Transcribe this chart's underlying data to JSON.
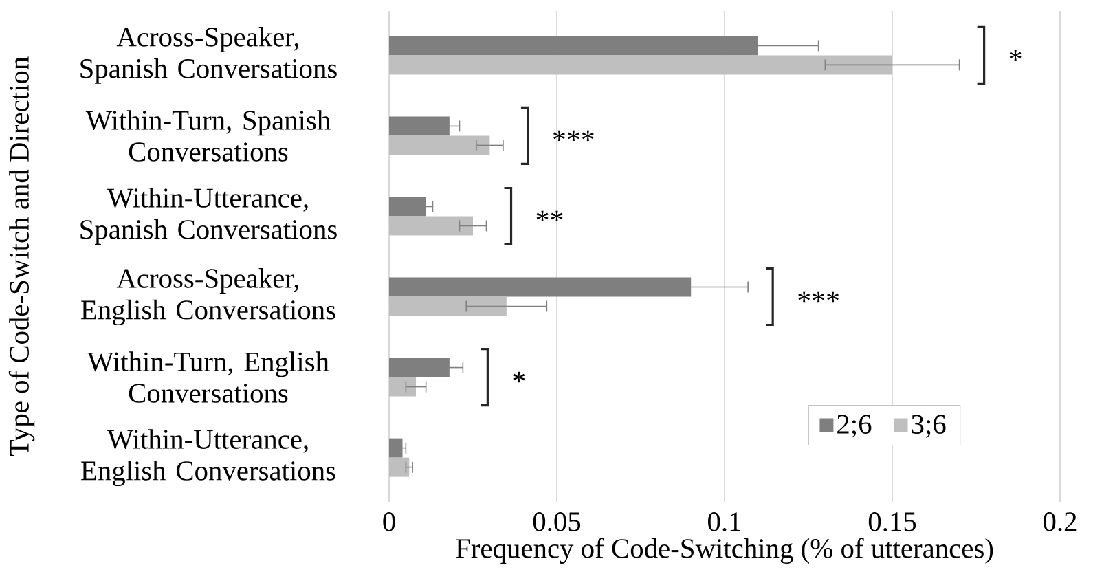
{
  "chart_data": {
    "type": "bar",
    "orientation": "horizontal",
    "xlabel": "Frequency of Code-Switching (% of utterances)",
    "ylabel": "Type of Code-Switch and Direction",
    "categories": [
      "Across-Speaker, Spanish Conversations",
      "Within-Turn, Spanish Conversations",
      "Within-Utterance, Spanish Conversations",
      "Across-Speaker, English Conversations",
      "Within-Turn, English Conversations",
      "Within-Utterance, English Conversations"
    ],
    "series": [
      {
        "name": "2;6",
        "color": "#7f7f7f",
        "values": [
          0.11,
          0.018,
          0.011,
          0.09,
          0.018,
          0.004
        ],
        "errors": [
          0.018,
          0.003,
          0.002,
          0.017,
          0.004,
          0.001
        ]
      },
      {
        "name": "3;6",
        "color": "#bfbfbf",
        "values": [
          0.15,
          0.03,
          0.025,
          0.035,
          0.008,
          0.006
        ],
        "errors": [
          0.02,
          0.004,
          0.004,
          0.012,
          0.003,
          0.001
        ]
      }
    ],
    "xlim": [
      0,
      0.2
    ],
    "xticks": [
      0,
      0.05,
      0.1,
      0.15,
      0.2
    ],
    "grid": "x",
    "legend": "bottom right",
    "annotations": [
      "*",
      "***",
      "**",
      "***",
      "*"
    ]
  }
}
